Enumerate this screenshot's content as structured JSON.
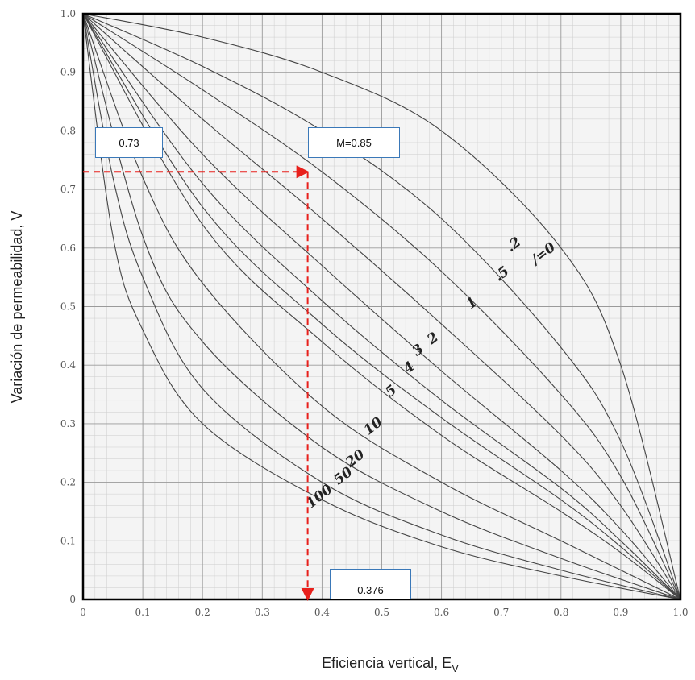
{
  "chart_data": {
    "type": "line",
    "xlabel": "Eficiencia vertical, E",
    "xlabel_subscript": "V",
    "ylabel": "Variación de permeabilidad, V",
    "xlim": [
      0,
      1.0
    ],
    "ylim": [
      0,
      1.0
    ],
    "x_ticks": [
      "0",
      "0.1",
      "0.2",
      "0.3",
      "0.4",
      "0.5",
      "0.6",
      "0.7",
      "0.8",
      "0.9",
      "1.0"
    ],
    "y_ticks": [
      "0",
      "0.1",
      "0.2",
      "0.3",
      "0.4",
      "0.5",
      "0.6",
      "0.7",
      "0.8",
      "0.9",
      "1.0"
    ],
    "grid": true,
    "series": [
      {
        "name": "∕=0",
        "x": [
          0,
          0.2,
          0.4,
          0.6,
          0.8,
          0.9,
          1.0
        ],
        "y": [
          1.0,
          0.96,
          0.9,
          0.8,
          0.6,
          0.4,
          0.0
        ]
      },
      {
        "name": ".2",
        "x": [
          0,
          0.2,
          0.4,
          0.6,
          0.8,
          0.9,
          1.0
        ],
        "y": [
          1.0,
          0.91,
          0.8,
          0.65,
          0.43,
          0.27,
          0.0
        ]
      },
      {
        "name": ".5",
        "x": [
          0,
          0.2,
          0.4,
          0.6,
          0.8,
          0.9,
          1.0
        ],
        "y": [
          1.0,
          0.87,
          0.73,
          0.56,
          0.35,
          0.21,
          0.0
        ]
      },
      {
        "name": "1",
        "x": [
          0,
          0.2,
          0.4,
          0.6,
          0.8,
          0.9,
          1.0
        ],
        "y": [
          1.0,
          0.82,
          0.65,
          0.47,
          0.28,
          0.16,
          0.0
        ]
      },
      {
        "name": "2",
        "x": [
          0,
          0.2,
          0.4,
          0.6,
          0.8,
          0.9,
          1.0
        ],
        "y": [
          1.0,
          0.76,
          0.57,
          0.39,
          0.22,
          0.12,
          0.0
        ]
      },
      {
        "name": "3",
        "x": [
          0,
          0.2,
          0.4,
          0.6,
          0.8,
          0.9,
          1.0
        ],
        "y": [
          1.0,
          0.71,
          0.51,
          0.34,
          0.19,
          0.1,
          0.0
        ]
      },
      {
        "name": "4",
        "x": [
          0,
          0.2,
          0.4,
          0.6,
          0.8,
          0.9,
          1.0
        ],
        "y": [
          1.0,
          0.67,
          0.47,
          0.31,
          0.17,
          0.09,
          0.0
        ]
      },
      {
        "name": "5",
        "x": [
          0,
          0.2,
          0.4,
          0.6,
          0.8,
          0.9,
          1.0
        ],
        "y": [
          1.0,
          0.64,
          0.44,
          0.28,
          0.15,
          0.08,
          0.0
        ]
      },
      {
        "name": "10",
        "x": [
          0,
          0.1,
          0.2,
          0.4,
          0.6,
          0.8,
          1.0
        ],
        "y": [
          1.0,
          0.72,
          0.54,
          0.33,
          0.2,
          0.1,
          0.0
        ]
      },
      {
        "name": "20",
        "x": [
          0,
          0.1,
          0.2,
          0.4,
          0.6,
          0.8,
          1.0
        ],
        "y": [
          1.0,
          0.62,
          0.44,
          0.26,
          0.15,
          0.07,
          0.0
        ]
      },
      {
        "name": "50",
        "x": [
          0,
          0.05,
          0.1,
          0.2,
          0.4,
          0.6,
          0.8,
          1.0
        ],
        "y": [
          1.0,
          0.72,
          0.55,
          0.36,
          0.2,
          0.11,
          0.05,
          0.0
        ]
      },
      {
        "name": "100",
        "x": [
          0,
          0.05,
          0.1,
          0.2,
          0.4,
          0.6,
          0.8,
          1.0
        ],
        "y": [
          1.0,
          0.62,
          0.46,
          0.3,
          0.17,
          0.09,
          0.04,
          0.0
        ]
      }
    ],
    "curve_labels": [
      "∕=0",
      ".2",
      ".5",
      "1",
      "2",
      "3",
      "4",
      "5",
      "10",
      "20",
      "50",
      "100"
    ],
    "annotations": {
      "v_value": "0.73",
      "m_value": "M=0.85",
      "ev_value": "0.376",
      "point": {
        "x": 0.376,
        "y": 0.73
      },
      "color": "#e8201c",
      "box_border_color": "#3a78b8"
    }
  }
}
